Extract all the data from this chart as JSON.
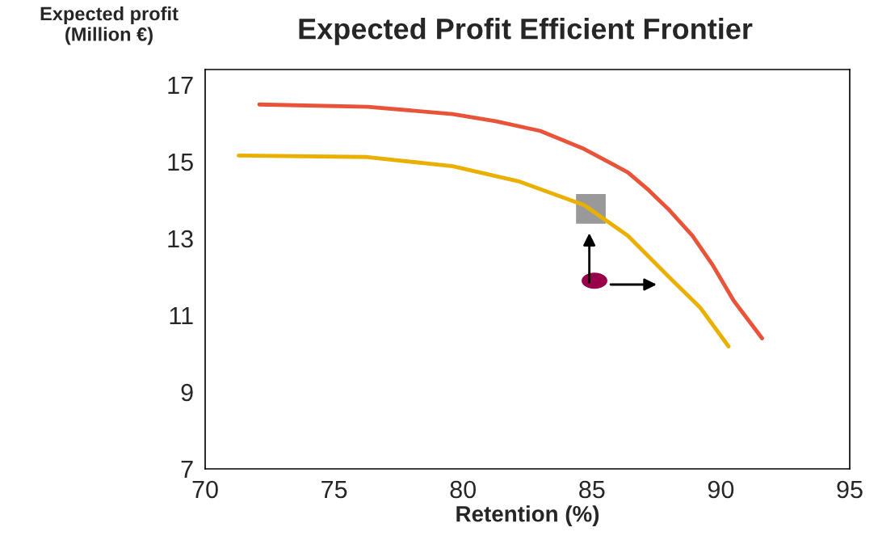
{
  "chart_data": {
    "type": "line",
    "title": "Expected Profit Efficient Frontier",
    "xlabel": "Retention (%)",
    "ylabel": "Expected profit\n(Million €)",
    "xlim": [
      70,
      95
    ],
    "xticks": [
      70,
      75,
      80,
      85,
      90,
      95
    ],
    "ylim": [
      7,
      17.4
    ],
    "yticks": [
      7,
      9,
      11,
      13,
      15,
      17
    ],
    "grid": false,
    "legend": false,
    "marker": "none",
    "line_style": "solid",
    "series": [
      {
        "color": "#e8533a",
        "x": [
          72.1,
          76.3,
          79.6,
          81.3,
          83.0,
          84.7,
          86.4,
          87.2,
          88.0,
          88.9,
          89.7,
          90.5,
          91.6
        ],
        "values": [
          16.49,
          16.43,
          16.24,
          16.05,
          15.8,
          15.33,
          14.72,
          14.26,
          13.74,
          13.07,
          12.29,
          11.38,
          10.4
        ]
      },
      {
        "color": "#eab000",
        "x": [
          71.3,
          76.3,
          79.6,
          82.2,
          84.7,
          86.4,
          88.0,
          89.2,
          90.3
        ],
        "values": [
          15.16,
          15.12,
          14.88,
          14.48,
          13.87,
          13.07,
          11.99,
          11.2,
          10.19
        ]
      },
      {
        "type": "scatter",
        "marker": "square",
        "color": "#999999",
        "x": [
          84.96
        ],
        "values": [
          13.77
        ]
      },
      {
        "type": "scatter",
        "marker": "circle",
        "color": "#99004c",
        "x": [
          85.1
        ],
        "values": [
          11.9
        ]
      }
    ]
  }
}
